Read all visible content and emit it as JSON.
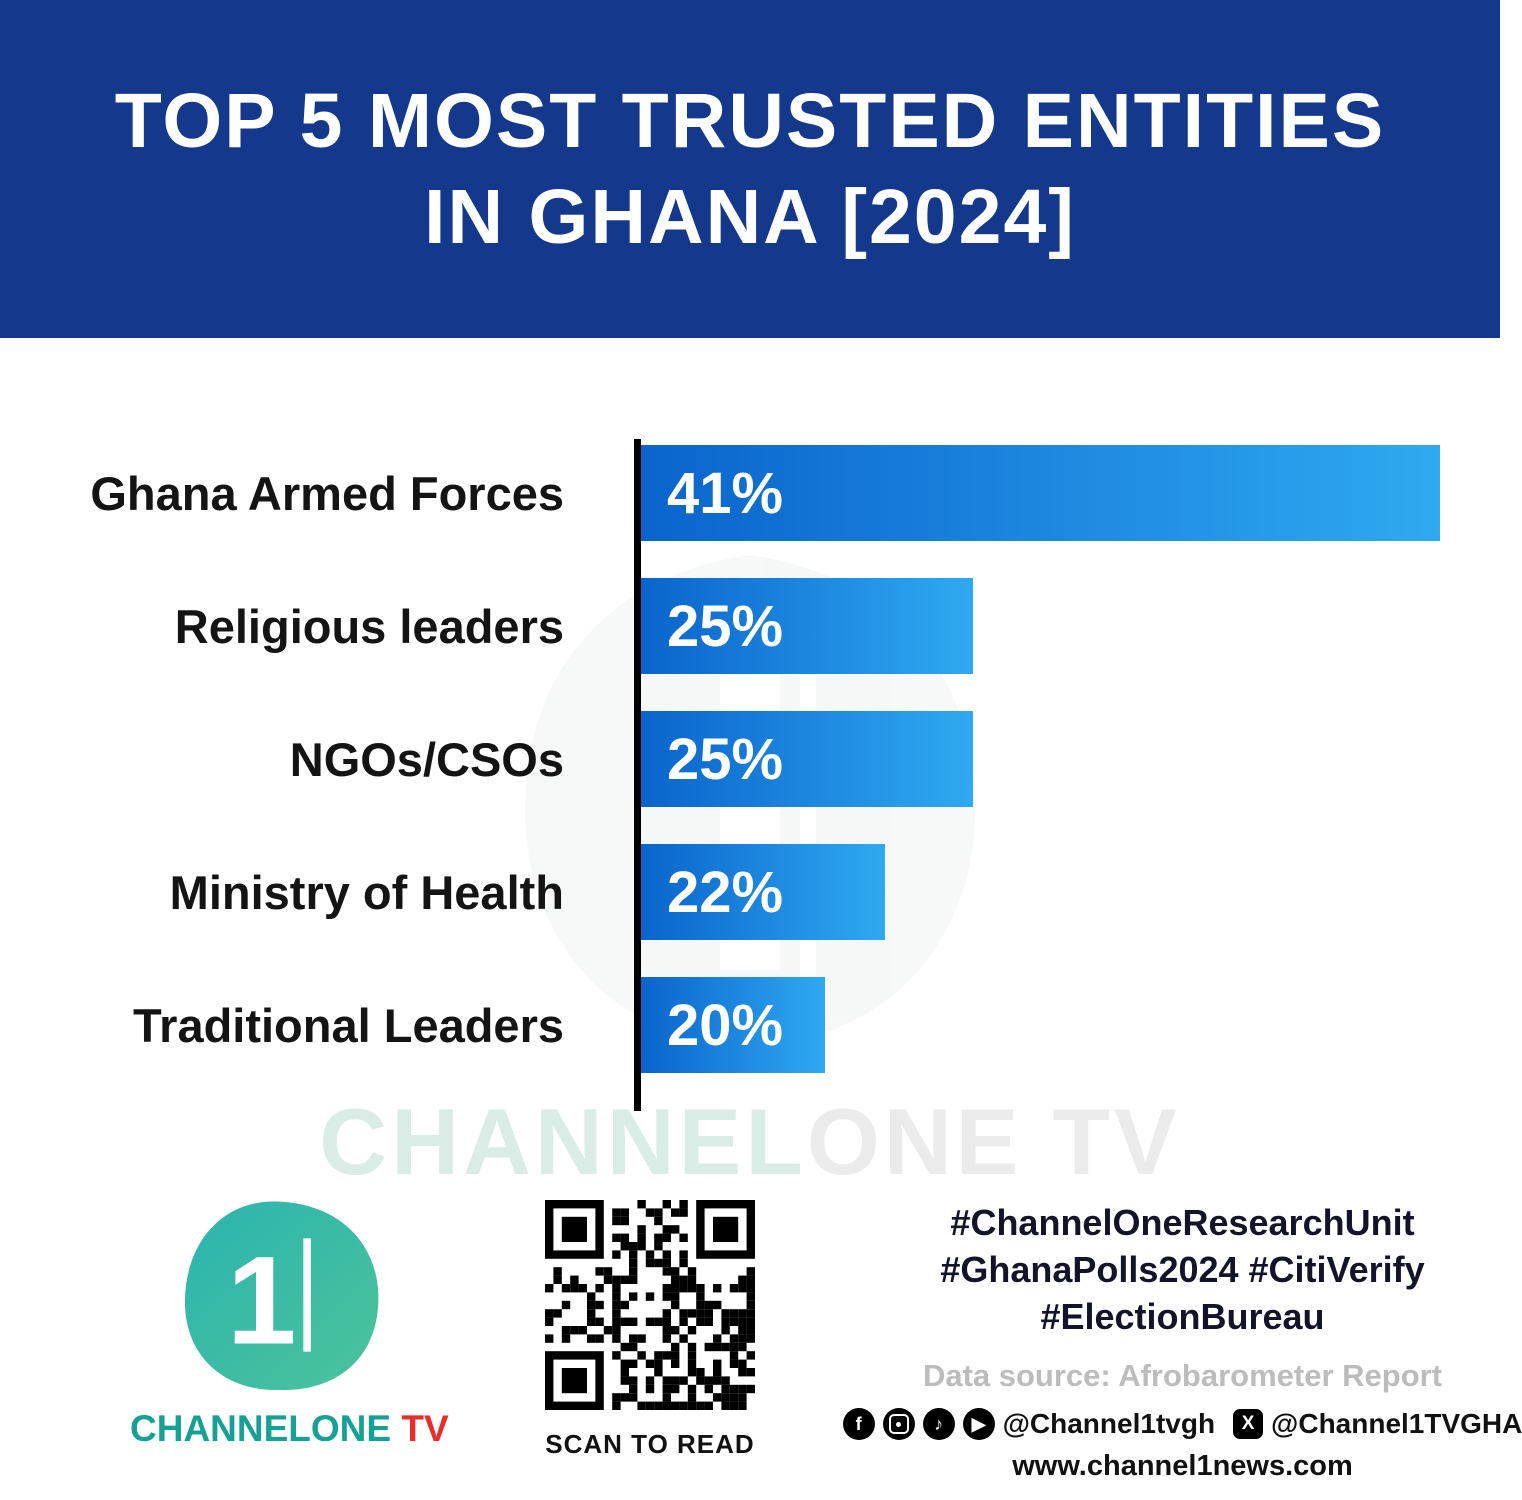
{
  "header": {
    "title_line1": "TOP 5 MOST TRUSTED ENTITIES",
    "title_line2": "IN GHANA [2024]"
  },
  "chart_data": {
    "type": "bar",
    "orientation": "horizontal",
    "title": "Top 5 Most Trusted Entities in Ghana [2024]",
    "categories": [
      "Ghana Armed Forces",
      "Religious leaders",
      "NGOs/CSOs",
      "Ministry of Health",
      "Traditional Leaders"
    ],
    "values": [
      41,
      25,
      25,
      22,
      20
    ],
    "value_labels": [
      "41%",
      "25%",
      "25%",
      "22%",
      "20%"
    ],
    "bar_display_widths_pct": [
      100,
      41.5,
      41.5,
      30.5,
      23
    ],
    "bar_gradient": [
      "#0a64cc",
      "#2fa9f1"
    ],
    "xlim": [
      0,
      41
    ],
    "grid": false,
    "legend": false,
    "xlabel": "",
    "ylabel": ""
  },
  "watermark": {
    "part1": "CHANNEL",
    "part2": "ONE TV"
  },
  "footer": {
    "logo": {
      "digit": "1",
      "text_main": "CHANNELONE",
      "text_tv": " TV"
    },
    "qr": {
      "caption": "SCAN TO READ"
    },
    "hashtags": {
      "line1": "#ChannelOneResearchUnit",
      "line2": "#GhanaPolls2024 #CitiVerify",
      "line3": "#ElectionBureau"
    },
    "data_source": "Data source: Afrobarometer Report",
    "social": {
      "handle1": "@Channel1tvgh",
      "handle2": "@Channel1TVGHA"
    },
    "website": "www.channel1news.com"
  },
  "colors": {
    "header_bg": "#14388c",
    "bar_start": "#0a64cc",
    "bar_end": "#2fa9f1",
    "brand_teal": "#17a095",
    "brand_red": "#e62e2a"
  }
}
